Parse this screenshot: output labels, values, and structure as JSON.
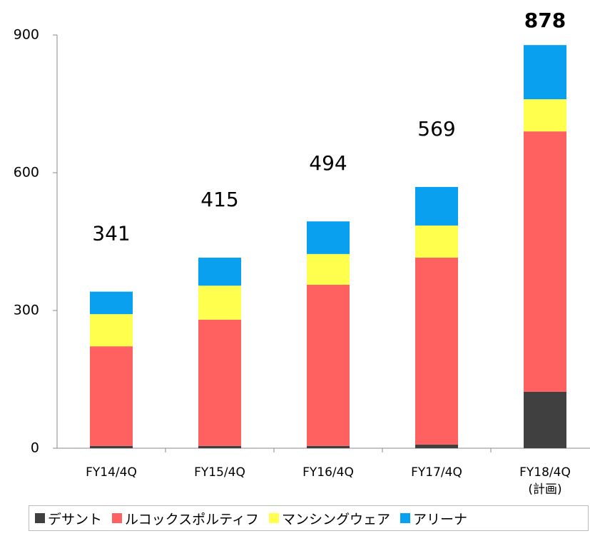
{
  "chart_data": {
    "type": "stacked_bar",
    "categories": [
      "FY14/4Q",
      "FY15/4Q",
      "FY16/4Q",
      "FY17/4Q",
      "FY18/4Q\n(計画)"
    ],
    "series": [
      {
        "name": "デサント",
        "color": "#404040",
        "values": [
          5,
          5,
          5,
          8,
          123
        ]
      },
      {
        "name": "ルコックスポルティフ",
        "color": "#ff6161",
        "values": [
          217,
          275,
          351,
          407,
          567
        ]
      },
      {
        "name": "マンシングウェア",
        "color": "#ffff4d",
        "values": [
          70,
          74,
          67,
          70,
          70
        ]
      },
      {
        "name": "アリーナ",
        "color": "#0aa0f0",
        "values": [
          49,
          61,
          71,
          84,
          118
        ]
      }
    ],
    "totals": [
      341,
      415,
      494,
      569,
      878
    ],
    "ylim": [
      0,
      900
    ],
    "yticks": [
      0,
      300,
      600,
      900
    ]
  }
}
